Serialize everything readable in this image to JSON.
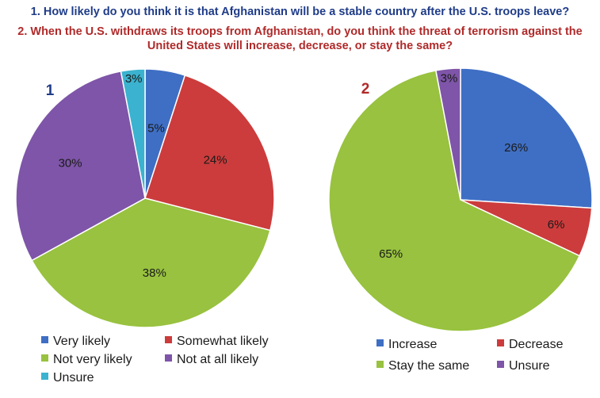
{
  "title_lines": [
    "1.  How likely do you think it is that Afghanistan  will be a stable country after the U.S. troops leave?",
    "2.  When the U.S. withdraws its troops from Afghanistan,  do you think the threat of terrorism against the",
    "United States will increase, decrease, or stay the same?"
  ],
  "colors": {
    "q1_title": "#1f3c88",
    "q2_title": "#b02a2a"
  },
  "chart_data": [
    {
      "type": "pie",
      "title": "1",
      "categories": [
        "Very likely",
        "Somewhat likely",
        "Not very likely",
        "Not at all likely",
        "Unsure"
      ],
      "values": [
        5,
        24,
        38,
        30,
        3
      ],
      "data_labels": [
        "5%",
        "24%",
        "38%",
        "30%",
        "3%"
      ],
      "colors": [
        "#3f6fc4",
        "#cc3c3c",
        "#98c23f",
        "#7e55a8",
        "#3bb2cf"
      ],
      "legend": "bottom",
      "legend_columns": 2
    },
    {
      "type": "pie",
      "title": "2",
      "categories": [
        "Increase",
        "Decrease",
        "Stay the same",
        "Unsure"
      ],
      "values": [
        26,
        6,
        65,
        3
      ],
      "data_labels": [
        "26%",
        "6%",
        "65%",
        "3%"
      ],
      "colors": [
        "#3f6fc4",
        "#cc3c3c",
        "#98c23f",
        "#7e55a8"
      ],
      "legend": "bottom",
      "legend_columns": 2
    }
  ]
}
